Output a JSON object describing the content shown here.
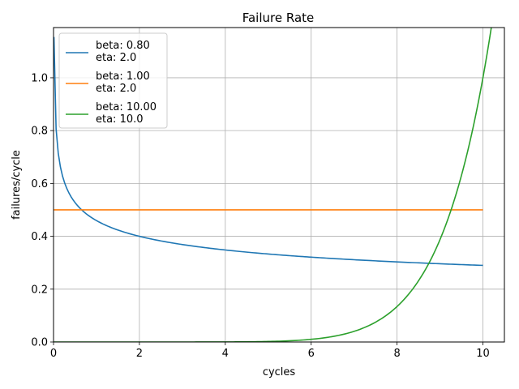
{
  "chart_data": {
    "type": "line",
    "title": "Failure Rate",
    "xlabel": "cycles",
    "ylabel": "failures/cycle",
    "xlim": [
      0,
      10.5
    ],
    "ylim": [
      0,
      1.19
    ],
    "xticks": [
      0,
      2,
      4,
      6,
      8,
      10
    ],
    "yticks": [
      0.0,
      0.2,
      0.4,
      0.6,
      0.8,
      1.0
    ],
    "xtick_labels": [
      "0",
      "2",
      "4",
      "6",
      "8",
      "10"
    ],
    "ytick_labels": [
      "0.0",
      "0.2",
      "0.4",
      "0.6",
      "0.8",
      "1.0"
    ],
    "grid": true,
    "legend_position": "top-left",
    "series": [
      {
        "legend_lines": [
          "beta: 0.80",
          "eta: 2.0"
        ],
        "color": "#1f77b4",
        "model": "weibull_hazard",
        "beta": 0.8,
        "eta": 2.0,
        "x_range": [
          0.01,
          10
        ]
      },
      {
        "legend_lines": [
          "beta: 1.00",
          "eta: 2.0"
        ],
        "color": "#ff7f0e",
        "model": "weibull_hazard",
        "beta": 1.0,
        "eta": 2.0,
        "x_range": [
          0.01,
          10
        ]
      },
      {
        "legend_lines": [
          "beta: 10.00",
          "eta: 10.0"
        ],
        "color": "#2ca02c",
        "model": "weibull_hazard",
        "beta": 10.0,
        "eta": 10.0,
        "x_range": [
          0.01,
          10.2
        ]
      }
    ]
  }
}
